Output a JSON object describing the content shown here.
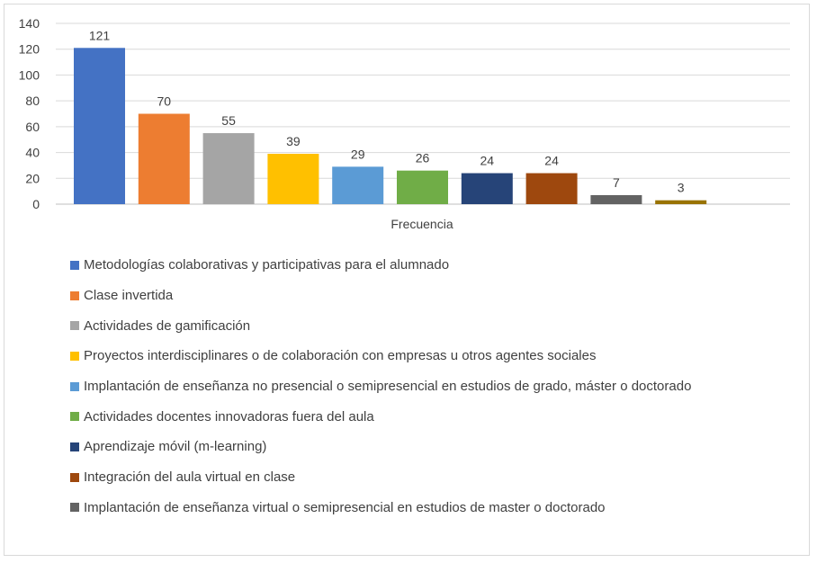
{
  "chart_data": {
    "type": "bar",
    "xlabel": "Frecuencia",
    "ylim": [
      0,
      140
    ],
    "yticks": [
      0,
      20,
      40,
      60,
      80,
      100,
      120,
      140
    ],
    "grid": true,
    "legend_position": "bottom",
    "series": [
      {
        "name": "Metodologías colaborativas y participativas para el alumnado",
        "value": 121,
        "color": "#4472C4"
      },
      {
        "name": "Clase invertida",
        "value": 70,
        "color": "#ED7D31"
      },
      {
        "name": "Actividades de gamificación",
        "value": 55,
        "color": "#A5A5A5"
      },
      {
        "name": "Proyectos interdisciplinares o de colaboración con empresas u otros agentes sociales",
        "value": 39,
        "color": "#FFC000"
      },
      {
        "name": "Implantación de enseñanza no presencial o semipresencial en estudios de grado, máster o doctorado",
        "value": 29,
        "color": "#5B9BD5"
      },
      {
        "name": "Actividades docentes innovadoras fuera del aula",
        "value": 26,
        "color": "#70AD47"
      },
      {
        "name": "Aprendizaje móvil (m-learning)",
        "value": 24,
        "color": "#264478"
      },
      {
        "name": "Integración del aula virtual en clase",
        "value": 24,
        "color": "#9E480E"
      },
      {
        "name": "Implantación de enseñanza virtual o semipresencial en estudios de master o doctorado",
        "value": 7,
        "color": "#636363"
      },
      {
        "name": "",
        "value": 3,
        "color": "#997300"
      }
    ]
  }
}
